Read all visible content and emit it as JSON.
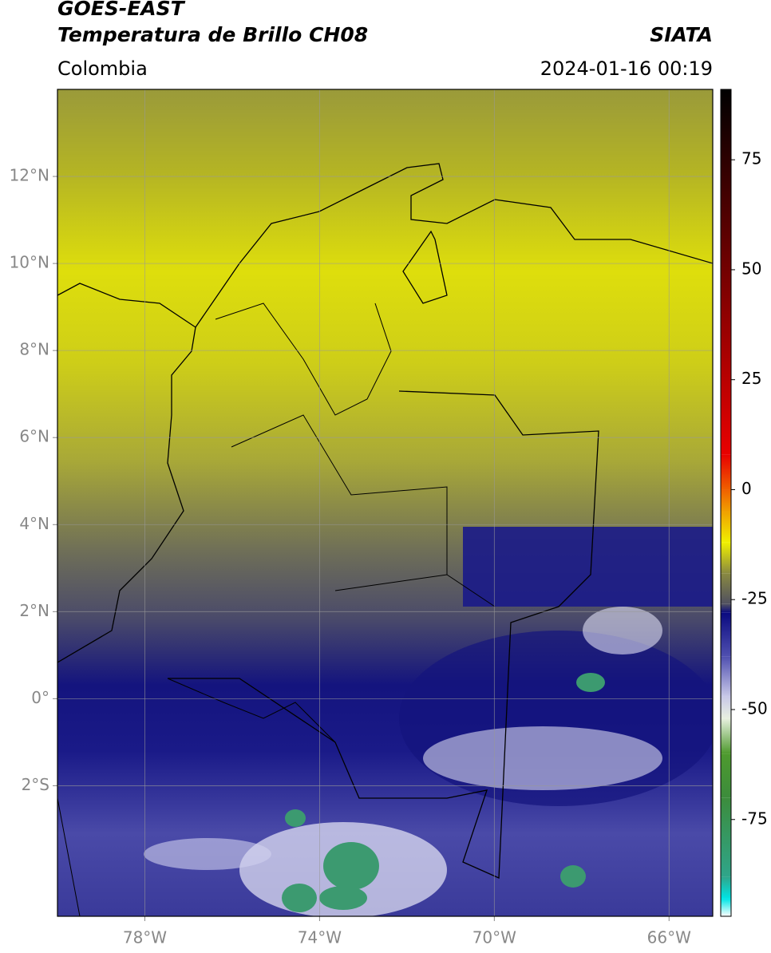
{
  "map": {
    "title": "GOES-EAST",
    "subtitle": "Temperatura de Brillo CH08",
    "source": "SIATA",
    "region": "Colombia",
    "timestamp": "2024-01-16 00:19",
    "xlim": [
      -80,
      -65
    ],
    "ylim": [
      -5,
      14
    ],
    "xticks": [
      {
        "value": -78,
        "label": "78°W"
      },
      {
        "value": -74,
        "label": "74°W"
      },
      {
        "value": -70,
        "label": "70°W"
      },
      {
        "value": -66,
        "label": "66°W"
      }
    ],
    "yticks": [
      {
        "value": 12,
        "label": "12°N"
      },
      {
        "value": 10,
        "label": "10°N"
      },
      {
        "value": 8,
        "label": "8°N"
      },
      {
        "value": 6,
        "label": "6°N"
      },
      {
        "value": 4,
        "label": "4°N"
      },
      {
        "value": 2,
        "label": "2°N"
      },
      {
        "value": 0,
        "label": "0°"
      },
      {
        "value": -2,
        "label": "2°S"
      }
    ],
    "grid": true,
    "colorbar": {
      "lim": [
        -97,
        91
      ],
      "ticks": [
        75,
        50,
        25,
        0,
        -25,
        -50,
        -75
      ],
      "stops": [
        {
          "value": -97,
          "color": "#ffffff"
        },
        {
          "value": -93,
          "color": "#00e5e5"
        },
        {
          "value": -88,
          "color": "#2fa58a"
        },
        {
          "value": -70,
          "color": "#3c8c3c"
        },
        {
          "value": -60,
          "color": "#4e9a2e"
        },
        {
          "value": -52,
          "color": "#e8f0e0"
        },
        {
          "value": -47,
          "color": "#c8c8e8"
        },
        {
          "value": -38,
          "color": "#5050b0"
        },
        {
          "value": -28,
          "color": "#0a0a80"
        },
        {
          "value": -26,
          "color": "#505060"
        },
        {
          "value": -19,
          "color": "#8a8a40"
        },
        {
          "value": -12,
          "color": "#f0f000"
        },
        {
          "value": -5,
          "color": "#f0a000"
        },
        {
          "value": 0,
          "color": "#f06000"
        },
        {
          "value": 8,
          "color": "#e80000"
        },
        {
          "value": 91,
          "color": "#000000"
        }
      ]
    }
  }
}
